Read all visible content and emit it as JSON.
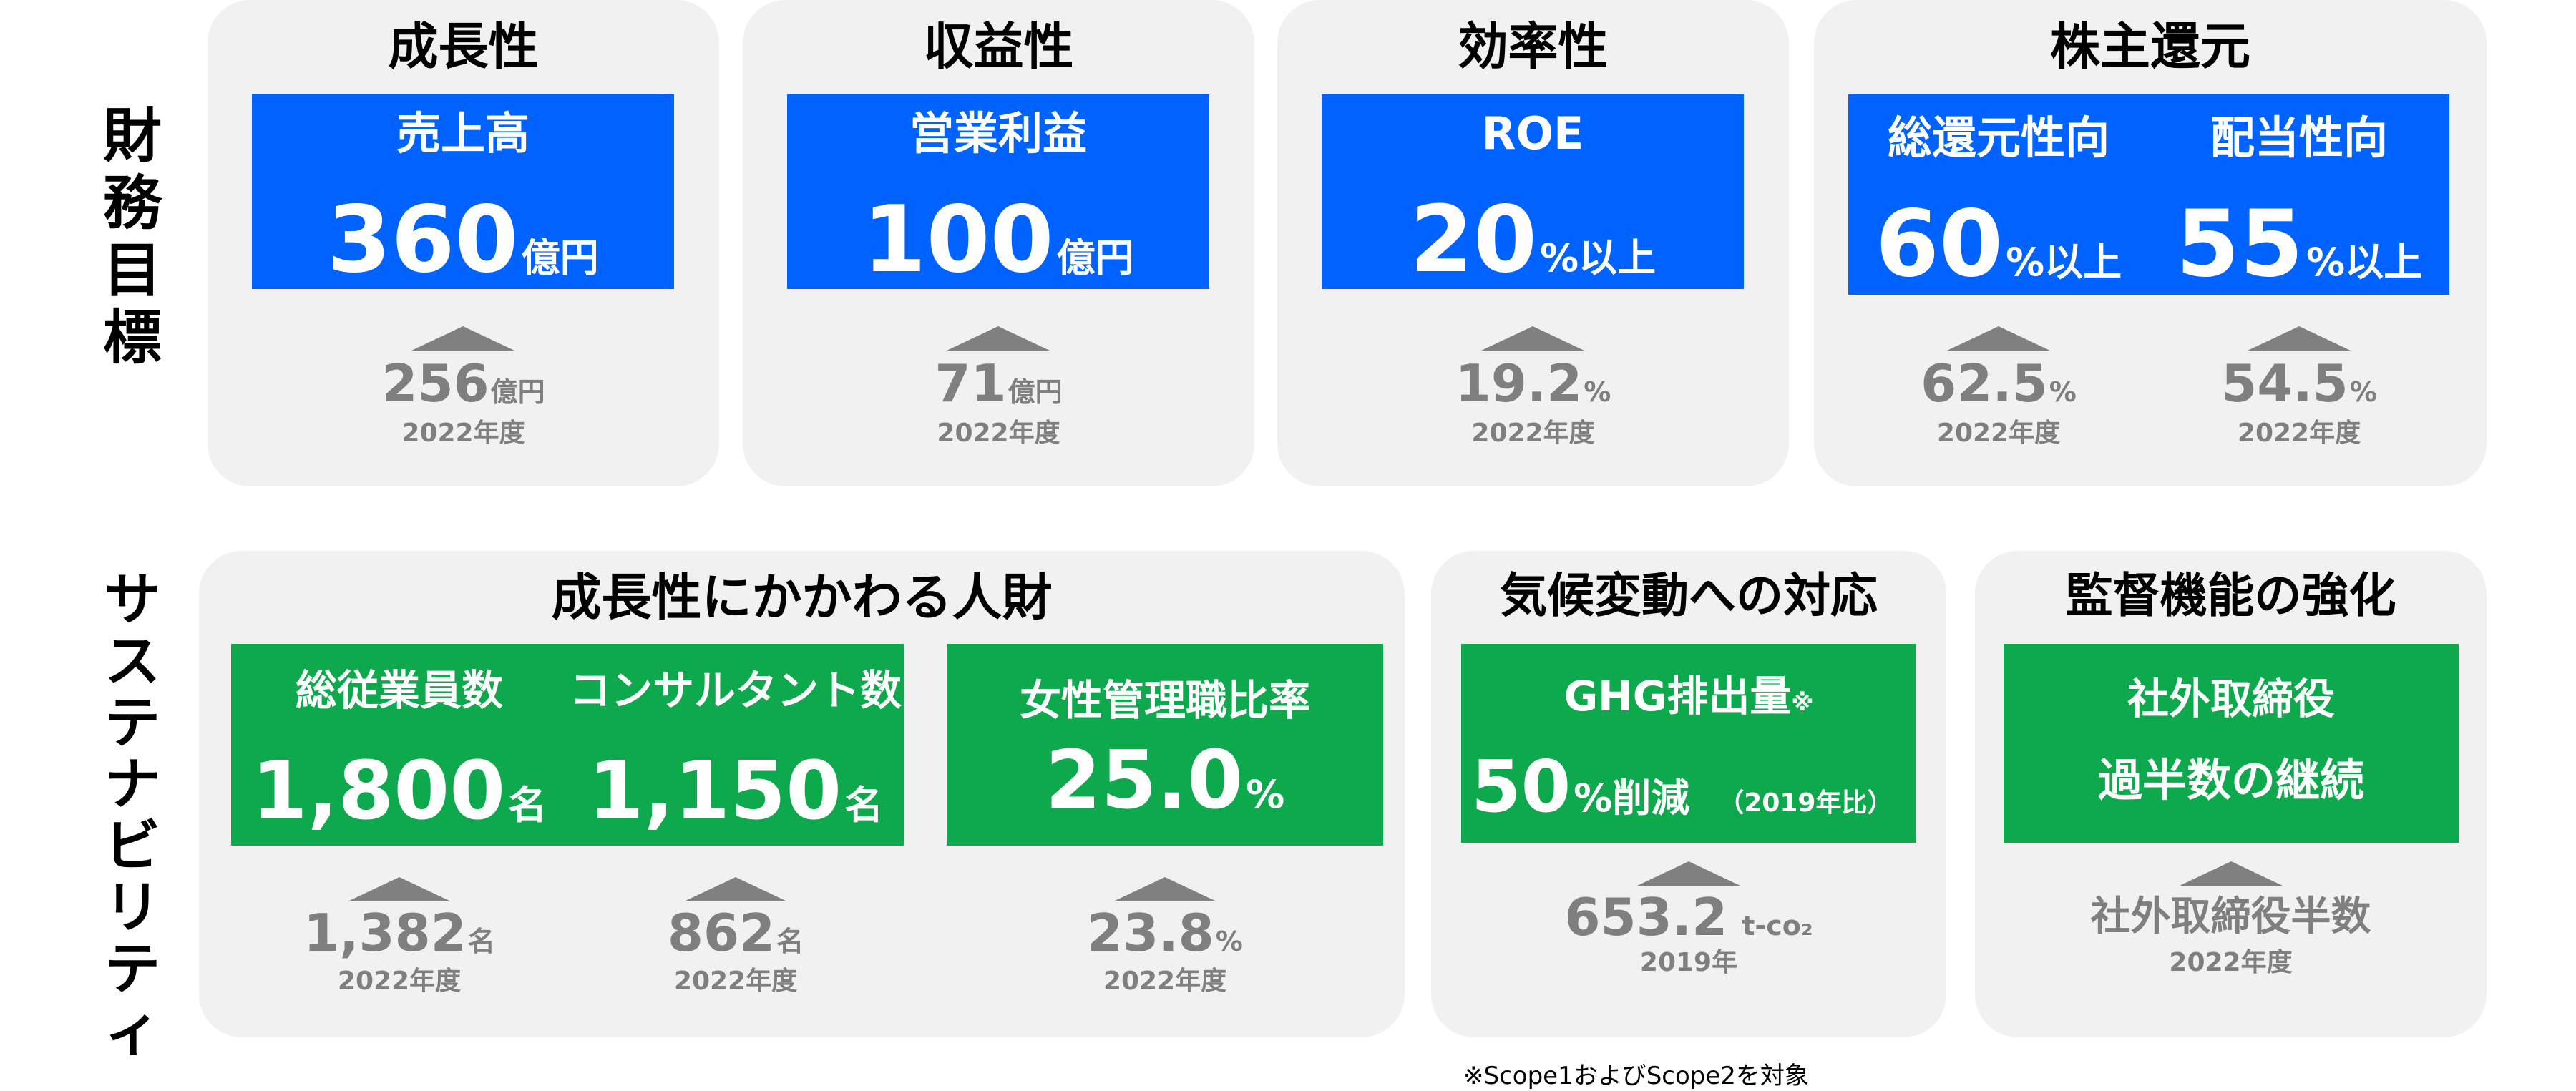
{
  "side_labels": {
    "financial": [
      "財",
      "務",
      "目",
      "標"
    ],
    "sustainability": [
      "サ",
      "ス",
      "テ",
      "ナ",
      "ビ",
      "リ",
      "テ",
      "ィ"
    ]
  },
  "financial": {
    "growth": {
      "title": "成長性",
      "label": "売上高",
      "value": "360",
      "unit": "億円",
      "prev_value": "256",
      "prev_unit": "億円",
      "prev_year": "2022年度"
    },
    "profit": {
      "title": "収益性",
      "label": "営業利益",
      "value": "100",
      "unit": "億円",
      "prev_value": "71",
      "prev_unit": "億円",
      "prev_year": "2022年度"
    },
    "efficiency": {
      "title": "効率性",
      "label": "ROE",
      "value": "20",
      "unit": "%以上",
      "prev_value": "19.2",
      "prev_unit": "%",
      "prev_year": "2022年度"
    },
    "shareholder": {
      "title": "株主還元",
      "total": {
        "label": "総還元性向",
        "value": "60",
        "unit": "%以上",
        "prev_value": "62.5",
        "prev_unit": "%",
        "prev_year": "2022年度"
      },
      "dividend": {
        "label": "配当性向",
        "value": "55",
        "unit": "%以上",
        "prev_value": "54.5",
        "prev_unit": "%",
        "prev_year": "2022年度"
      }
    }
  },
  "sustainability": {
    "people": {
      "title": "成長性にかかわる人財",
      "employees": {
        "label": "総従業員数",
        "value": "1,800",
        "unit": "名",
        "prev_value": "1,382",
        "prev_unit": "名",
        "prev_year": "2022年度"
      },
      "consultants": {
        "label": "コンサルタント数",
        "value": "1,150",
        "unit": "名",
        "prev_value": "862",
        "prev_unit": "名",
        "prev_year": "2022年度"
      },
      "women": {
        "label": "女性管理職比率",
        "value": "25.0",
        "unit": "%",
        "prev_value": "23.8",
        "prev_unit": "%",
        "prev_year": "2022年度"
      }
    },
    "climate": {
      "title": "気候変動への対応",
      "label": "GHG排出量",
      "label_mark": "※",
      "value": "50",
      "unit": "%削減",
      "note": "（2019年比）",
      "prev_value": "653.2",
      "prev_unit": "t-co₂",
      "prev_year": "2019年"
    },
    "governance": {
      "title": "監督機能の強化",
      "line1": "社外取締役",
      "line2": "過半数の継続",
      "prev_text": "社外取締役半数",
      "prev_year": "2022年度"
    }
  },
  "footnote": "※Scope1およびScope2を対象",
  "colors": {
    "blue": "#0062ff",
    "green": "#0da94c",
    "card": "#f1f1f1",
    "gray_text": "#7f7f7f",
    "arrow": "#808080"
  }
}
